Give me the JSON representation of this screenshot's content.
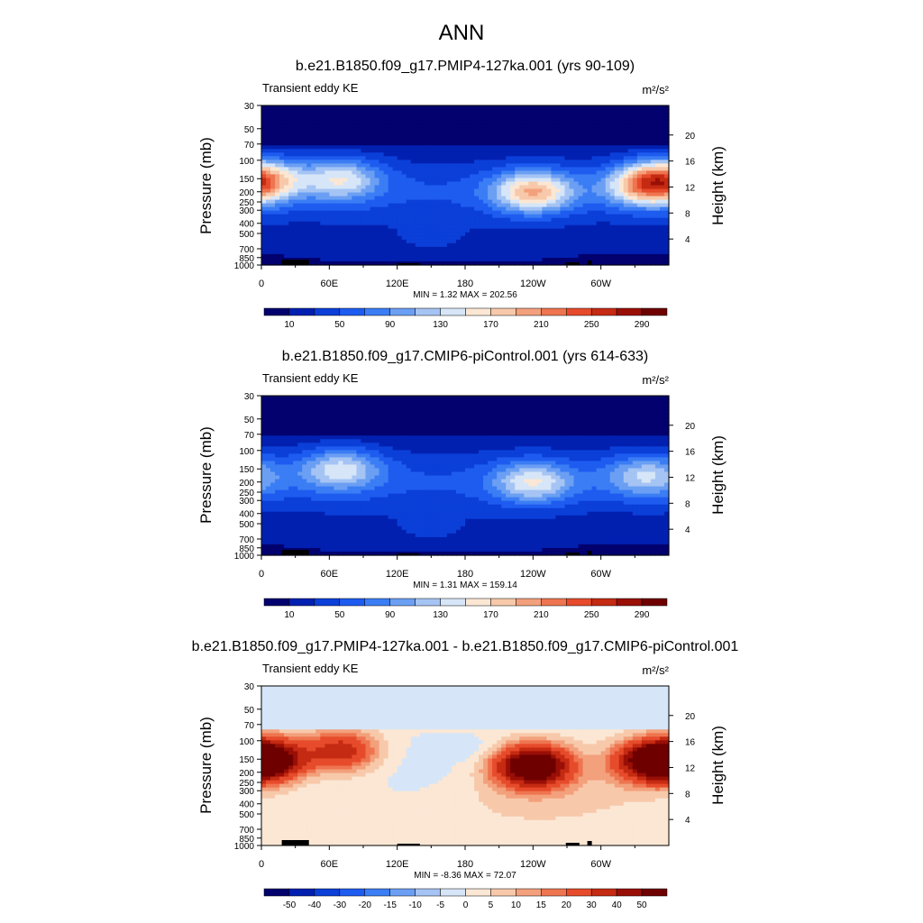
{
  "main_title": "ANN",
  "chart_data": [
    {
      "type": "heatmap",
      "title": "b.e21.B1850.f09_g17.PMIP4-127ka.001 (yrs 90-109)",
      "subtitle_left": "Transient eddy KE",
      "units": "m²/s²",
      "ylabel": "Pressure (mb)",
      "ylabel_right": "Height (km)",
      "x_ticks": [
        "0",
        "60E",
        "120E",
        "180",
        "120W",
        "60W"
      ],
      "y_ticks": [
        "30",
        "50",
        "70",
        "100",
        "150",
        "200",
        "250",
        "300",
        "400",
        "500",
        "700",
        "850",
        "1000"
      ],
      "y_ticks_right": [
        "20",
        "16",
        "12",
        "8",
        "4"
      ],
      "stats": "MIN =   1.32  MAX = 202.56",
      "min": 1.32,
      "max": 202.56,
      "colorbar_labels": [
        "10",
        "50",
        "90",
        "130",
        "170",
        "210",
        "250",
        "290"
      ],
      "maxima": [
        {
          "lon": 0,
          "pressure": 150,
          "value": 175
        },
        {
          "lon": 70,
          "pressure": 150,
          "value": 160
        },
        {
          "lon": 240,
          "pressure": 200,
          "value": 200
        },
        {
          "lon": 340,
          "pressure": 175,
          "value": 190
        }
      ]
    },
    {
      "type": "heatmap",
      "title": "b.e21.B1850.f09_g17.CMIP6-piControl.001 (yrs 614-633)",
      "subtitle_left": "Transient eddy KE",
      "units": "m²/s²",
      "ylabel": "Pressure (mb)",
      "ylabel_right": "Height (km)",
      "x_ticks": [
        "0",
        "60E",
        "120E",
        "180",
        "120W",
        "60W"
      ],
      "y_ticks": [
        "30",
        "50",
        "70",
        "100",
        "150",
        "200",
        "250",
        "300",
        "400",
        "500",
        "700",
        "850",
        "1000"
      ],
      "y_ticks_right": [
        "20",
        "16",
        "12",
        "8",
        "4"
      ],
      "stats": "MIN =   1.31  MAX = 159.14",
      "min": 1.31,
      "max": 159.14,
      "colorbar_labels": [
        "10",
        "50",
        "90",
        "130",
        "170",
        "210",
        "250",
        "290"
      ],
      "maxima": [
        {
          "lon": 70,
          "pressure": 150,
          "value": 155
        },
        {
          "lon": 240,
          "pressure": 200,
          "value": 158
        },
        {
          "lon": 340,
          "pressure": 175,
          "value": 140
        }
      ]
    },
    {
      "type": "heatmap",
      "title": "b.e21.B1850.f09_g17.PMIP4-127ka.001 - b.e21.B1850.f09_g17.CMIP6-piControl.001",
      "subtitle_left": "Transient eddy KE",
      "units": "m²/s²",
      "ylabel": "Pressure (mb)",
      "ylabel_right": "Height (km)",
      "x_ticks": [
        "0",
        "60E",
        "120E",
        "180",
        "120W",
        "60W"
      ],
      "y_ticks": [
        "30",
        "50",
        "70",
        "100",
        "150",
        "200",
        "250",
        "300",
        "400",
        "500",
        "700",
        "850",
        "1000"
      ],
      "y_ticks_right": [
        "20",
        "16",
        "12",
        "8",
        "4"
      ],
      "stats": "MIN =  -8.36  MAX =  72.07",
      "min": -8.36,
      "max": 72.07,
      "colorbar_labels": [
        "-50",
        "-40",
        "-30",
        "-20",
        "-15",
        "-10",
        "-5",
        "0",
        "5",
        "10",
        "15",
        "20",
        "30",
        "40",
        "50"
      ],
      "maxima": [
        {
          "lon": 5,
          "pressure": 150,
          "value": 60
        },
        {
          "lon": 70,
          "pressure": 125,
          "value": 35
        },
        {
          "lon": 240,
          "pressure": 175,
          "value": 72
        },
        {
          "lon": 345,
          "pressure": 160,
          "value": 55
        }
      ]
    }
  ],
  "colors": {
    "seq_palette": [
      "#02016e",
      "#0220b0",
      "#0b3fd8",
      "#1e5cf0",
      "#3b7df4",
      "#6b9ff3",
      "#a5c4f4",
      "#d6e6f8",
      "#fbe7d4",
      "#f7c9aa",
      "#f3a07c",
      "#ee7550",
      "#e64b2b",
      "#c52a12",
      "#990f06",
      "#6e0000"
    ],
    "diff_palette": [
      "#02016e",
      "#0220b0",
      "#0b3fd8",
      "#1e5cf0",
      "#3b7df4",
      "#6b9ff3",
      "#a5c4f4",
      "#d6e6f8",
      "#fbe7d4",
      "#f7c9aa",
      "#f3a07c",
      "#ee7550",
      "#e64b2b",
      "#c52a12",
      "#990f06",
      "#6e0000"
    ]
  }
}
